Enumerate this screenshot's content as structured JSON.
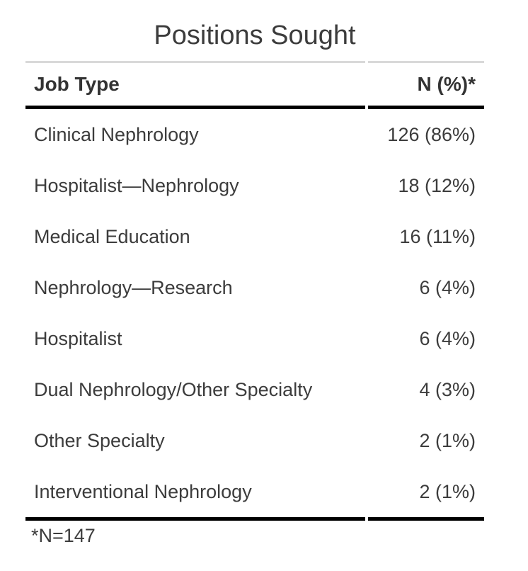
{
  "table": {
    "title": "Positions Sought",
    "columns": [
      "Job Type",
      "N (%)*"
    ],
    "rows": [
      {
        "job_type": "Clinical Nephrology",
        "n_pct": "126 (86%)"
      },
      {
        "job_type": "Hospitalist—Nephrology",
        "n_pct": "18 (12%)"
      },
      {
        "job_type": "Medical Education",
        "n_pct": "16 (11%)"
      },
      {
        "job_type": "Nephrology—Research",
        "n_pct": "6 (4%)"
      },
      {
        "job_type": "Hospitalist",
        "n_pct": "6 (4%)"
      },
      {
        "job_type": "Dual Nephrology/Other Specialty",
        "n_pct": "4 (3%)"
      },
      {
        "job_type": "Other Specialty",
        "n_pct": "2 (1%)"
      },
      {
        "job_type": "Interventional Nephrology",
        "n_pct": "2 (1%)"
      }
    ],
    "footnote": "*N=147"
  },
  "colors": {
    "text": "#3c3c3c",
    "rule_heavy": "#000000",
    "rule_light": "#d9d9d9",
    "background": "#ffffff"
  },
  "chart_data": {
    "type": "table",
    "title": "Positions Sought",
    "columns": [
      "Job Type",
      "N (%)*"
    ],
    "rows": [
      [
        "Clinical Nephrology",
        "126 (86%)"
      ],
      [
        "Hospitalist—Nephrology",
        "18 (12%)"
      ],
      [
        "Medical Education",
        "16 (11%)"
      ],
      [
        "Nephrology—Research",
        "6 (4%)"
      ],
      [
        "Hospitalist",
        "6 (4%)"
      ],
      [
        "Dual Nephrology/Other Specialty",
        "4 (3%)"
      ],
      [
        "Other Specialty",
        "2 (1%)"
      ],
      [
        "Interventional Nephrology",
        "2 (1%)"
      ]
    ],
    "counts": [
      126,
      18,
      16,
      6,
      6,
      4,
      2,
      2
    ],
    "percents": [
      86,
      12,
      11,
      4,
      4,
      3,
      1,
      1
    ],
    "footnote": "*N=147",
    "total_n": 147,
    "layout": {
      "header_rule": "heavy",
      "footer_rule": "heavy",
      "title_rule": "light",
      "value_alignment": "right"
    }
  }
}
